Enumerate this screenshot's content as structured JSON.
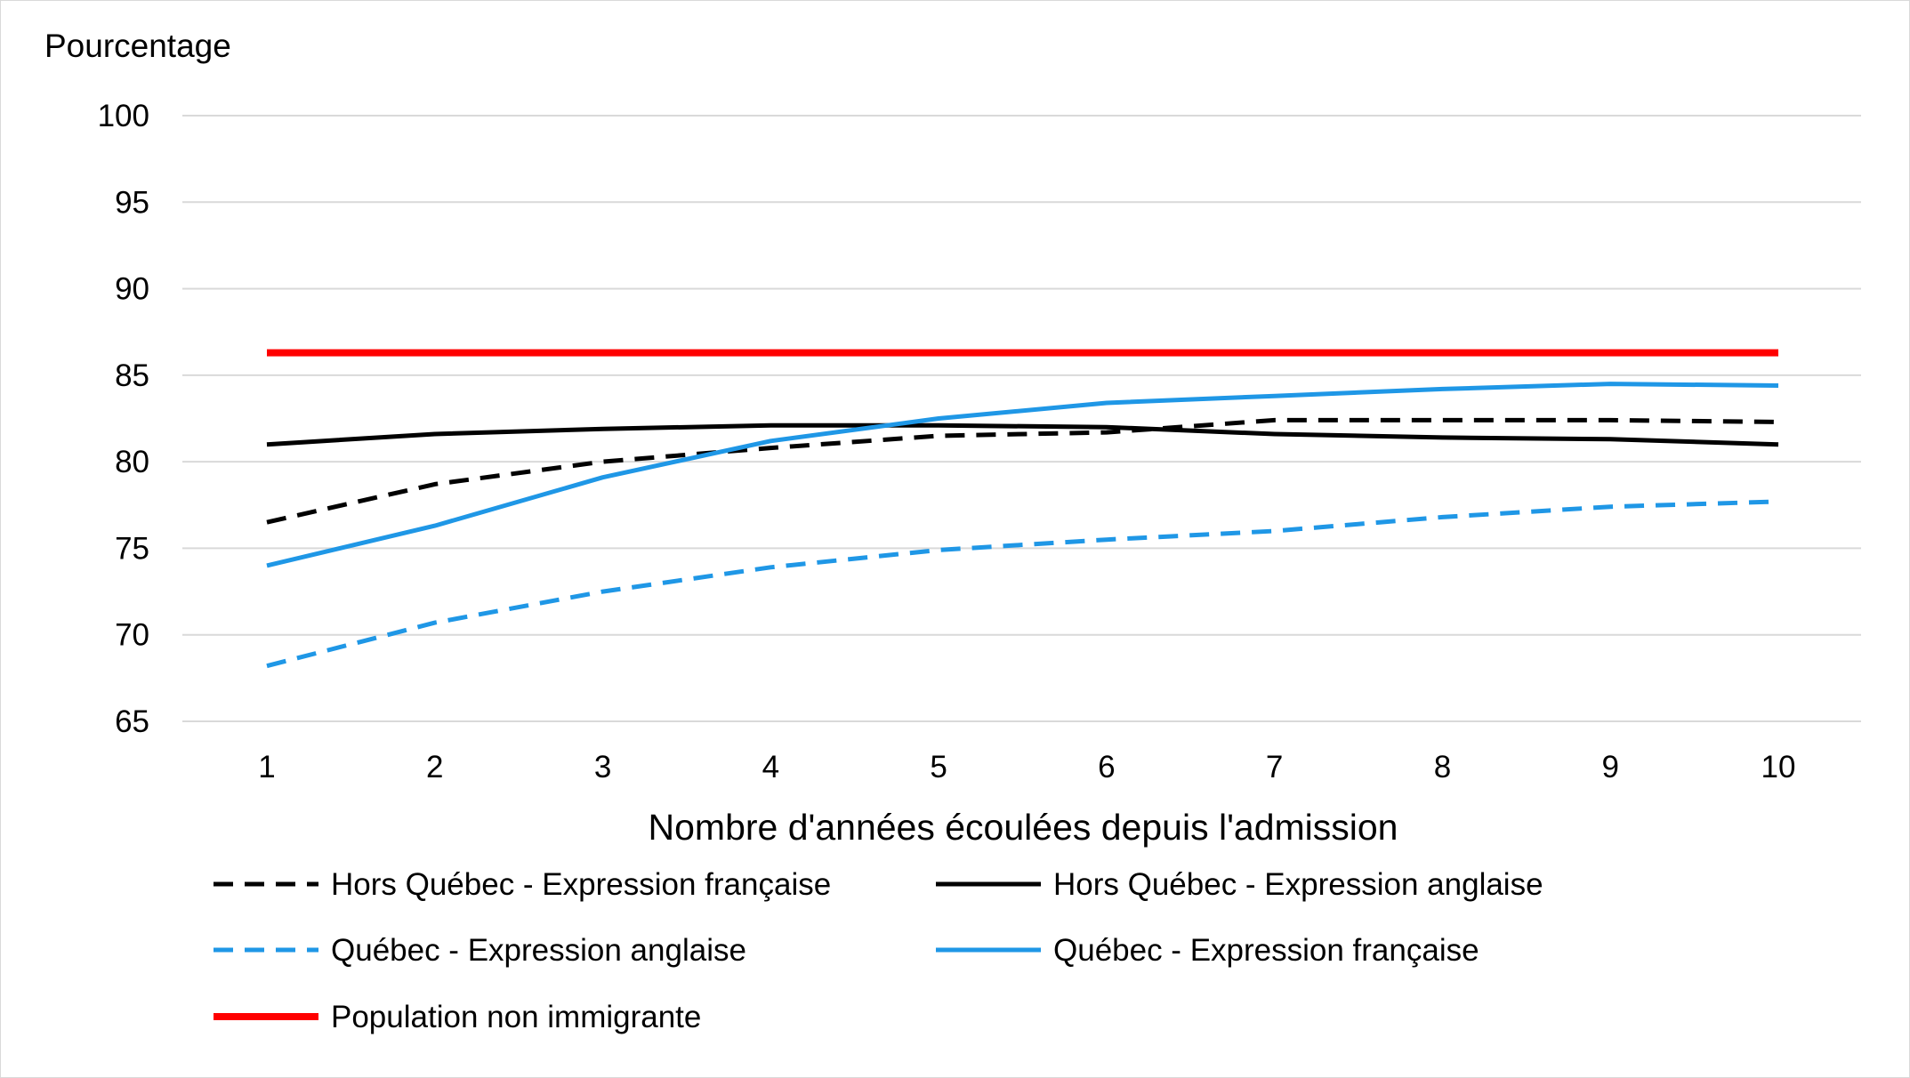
{
  "chart_data": {
    "type": "line",
    "xlabel": "Nombre d'années écoulées depuis l'admission",
    "ylabel": "Pourcentage",
    "x": [
      "1",
      "2",
      "3",
      "4",
      "5",
      "6",
      "7",
      "8",
      "9",
      "10"
    ],
    "ylim": [
      65,
      100
    ],
    "yticks": [
      "65",
      "70",
      "75",
      "80",
      "85",
      "90",
      "95",
      "100"
    ],
    "grid": true,
    "legend_position": "bottom",
    "series": [
      {
        "name": "Hors Québec - Expression française",
        "color": "#000000",
        "dashed": true,
        "values": [
          76.5,
          78.7,
          80.0,
          80.8,
          81.5,
          81.7,
          82.4,
          82.4,
          82.4,
          82.3
        ]
      },
      {
        "name": "Hors Québec -  Expression anglaise",
        "color": "#000000",
        "dashed": false,
        "values": [
          81.0,
          81.6,
          81.9,
          82.1,
          82.1,
          82.0,
          81.6,
          81.4,
          81.3,
          81.0
        ]
      },
      {
        "name": "Québec - Expression anglaise",
        "color": "#1f97e6",
        "dashed": true,
        "values": [
          68.2,
          70.7,
          72.5,
          73.9,
          74.9,
          75.5,
          76.0,
          76.8,
          77.4,
          77.7
        ]
      },
      {
        "name": "Québec - Expression française",
        "color": "#1f97e6",
        "dashed": false,
        "values": [
          74.0,
          76.3,
          79.1,
          81.2,
          82.5,
          83.4,
          83.8,
          84.2,
          84.5,
          84.4
        ]
      },
      {
        "name": "Population non immigrante",
        "color": "#ff0000",
        "dashed": false,
        "values": [
          86.3,
          86.3,
          86.3,
          86.3,
          86.3,
          86.3,
          86.3,
          86.3,
          86.3,
          86.3
        ]
      }
    ]
  }
}
